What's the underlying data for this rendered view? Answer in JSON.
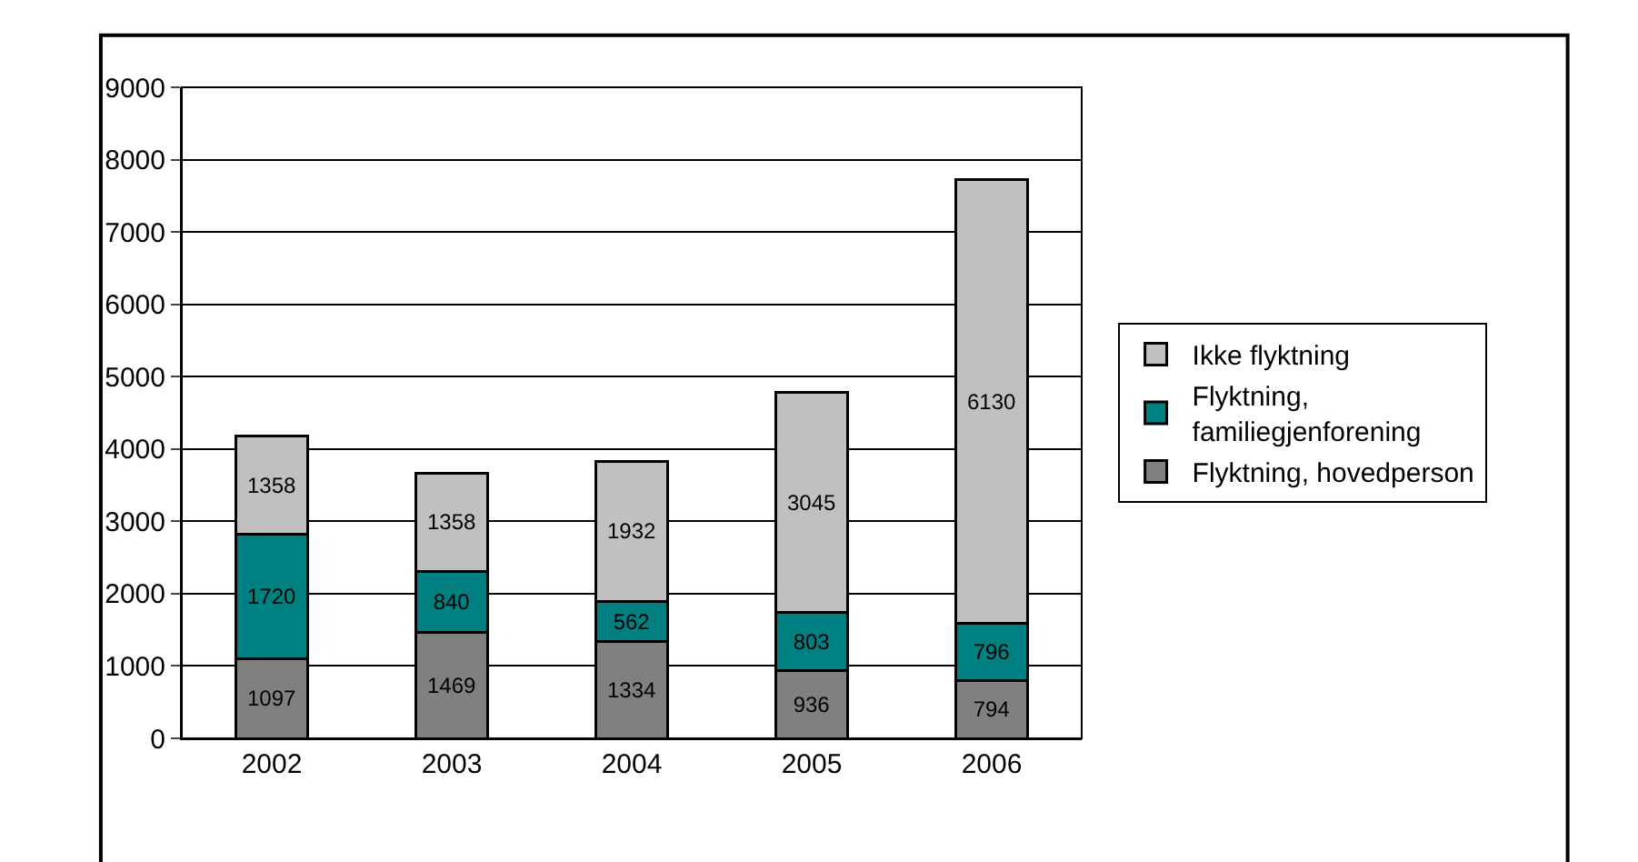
{
  "chart_data": {
    "type": "bar",
    "stacked": true,
    "categories": [
      "2002",
      "2003",
      "2004",
      "2005",
      "2006"
    ],
    "series": [
      {
        "name": "Flyktning, hovedperson",
        "color": "#808080",
        "values": [
          1097,
          1469,
          1334,
          936,
          794
        ]
      },
      {
        "name": "Flyktning, familiegjenforening",
        "color": "#008080",
        "values": [
          1720,
          840,
          562,
          803,
          796
        ]
      },
      {
        "name": "Ikke flyktning",
        "color": "#c0c0c0",
        "values": [
          1358,
          1358,
          1932,
          3045,
          6130
        ]
      }
    ],
    "ylim": [
      0,
      9000
    ],
    "yticks": [
      0,
      1000,
      2000,
      3000,
      4000,
      5000,
      6000,
      7000,
      8000,
      9000
    ],
    "grid": "y",
    "legend": "right",
    "data_labels": true
  }
}
